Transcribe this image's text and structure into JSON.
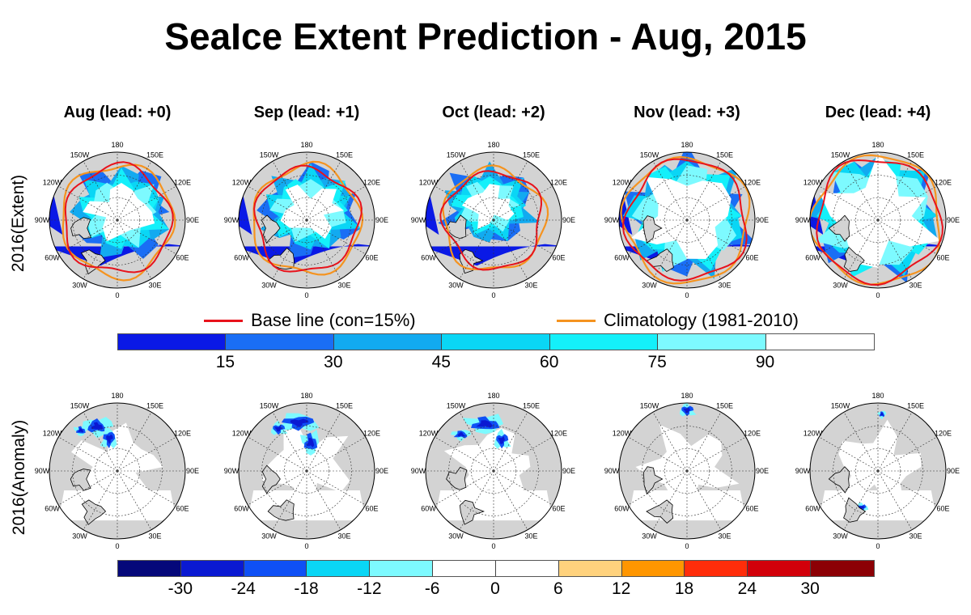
{
  "title": "SeaIce Extent Prediction - Aug, 2015",
  "columns": [
    {
      "label": "Aug (lead: +0)"
    },
    {
      "label": "Sep (lead: +1)"
    },
    {
      "label": "Oct (lead: +2)"
    },
    {
      "label": "Nov (lead: +3)"
    },
    {
      "label": "Dec (lead: +4)"
    }
  ],
  "rows": {
    "extent_label": "2016(Extent)",
    "anomaly_label": "2016(Anomaly)"
  },
  "map_labels": {
    "lon_180": "180",
    "lon_150w": "150W",
    "lon_150e": "150E",
    "lon_120w": "120W",
    "lon_120e": "120E",
    "lon_90w": "90W",
    "lon_90e": "90E",
    "lon_60w": "60W",
    "lon_60e": "60E",
    "lon_30w": "30W",
    "lon_30e": "30E",
    "lon_0": "0"
  },
  "legend": {
    "baseline_label": "Base line (con=15%)",
    "baseline_color": "#e8121b",
    "climatology_label": "Climatology (1981-2010)",
    "climatology_color": "#f5931f"
  },
  "extent_colorbar": {
    "colors": [
      "#0a19e6",
      "#1a6ef5",
      "#12aaf0",
      "#0ad6f5",
      "#14f0fa",
      "#7dfaff",
      "#ffffff"
    ],
    "labels": [
      "15",
      "30",
      "45",
      "60",
      "75",
      "90"
    ]
  },
  "anomaly_colorbar": {
    "colors": [
      "#05087a",
      "#0a19d2",
      "#0f50f5",
      "#0ad6f5",
      "#7dfaff",
      "#ffffff",
      "#ffffff",
      "#ffd27d",
      "#ff9600",
      "#ff2d0a",
      "#d2000a",
      "#8c0005"
    ],
    "labels": [
      "-30",
      "-24",
      "-18",
      "-12",
      "-6",
      "0",
      "6",
      "12",
      "18",
      "24",
      "30"
    ]
  }
}
